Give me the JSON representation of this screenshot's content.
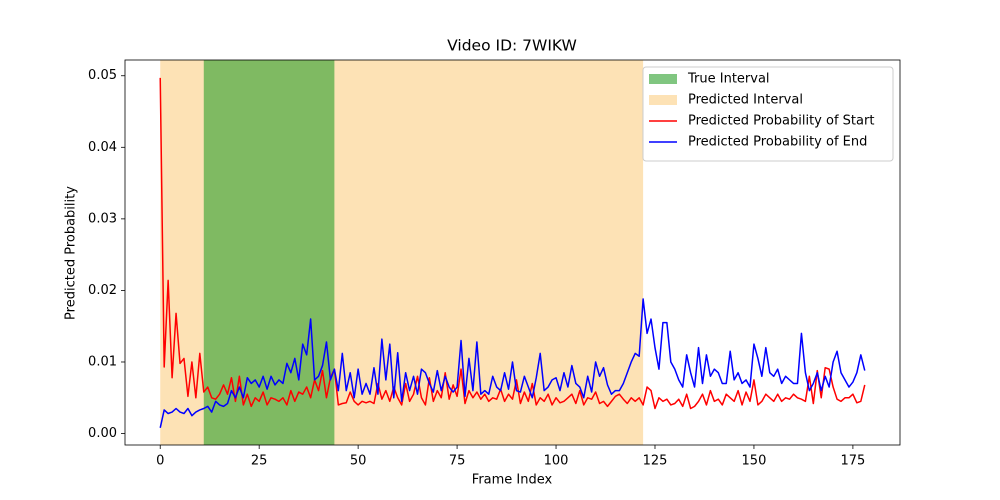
{
  "chart_data": {
    "type": "line",
    "title": "Video ID: 7WIKW",
    "x_label": "Frame Index",
    "y_label": "Predicted Probability",
    "x": [
      0,
      1,
      2,
      3,
      4,
      5,
      6,
      7,
      8,
      9,
      10,
      11,
      12,
      13,
      14,
      15,
      16,
      17,
      18,
      19,
      20,
      21,
      22,
      23,
      24,
      25,
      26,
      27,
      28,
      29,
      30,
      31,
      32,
      33,
      34,
      35,
      36,
      37,
      38,
      39,
      40,
      41,
      42,
      43,
      44,
      45,
      46,
      47,
      48,
      49,
      50,
      51,
      52,
      53,
      54,
      55,
      56,
      57,
      58,
      59,
      60,
      61,
      62,
      63,
      64,
      65,
      66,
      67,
      68,
      69,
      70,
      71,
      72,
      73,
      74,
      75,
      76,
      77,
      78,
      79,
      80,
      81,
      82,
      83,
      84,
      85,
      86,
      87,
      88,
      89,
      90,
      91,
      92,
      93,
      94,
      95,
      96,
      97,
      98,
      99,
      100,
      101,
      102,
      103,
      104,
      105,
      106,
      107,
      108,
      109,
      110,
      111,
      112,
      113,
      114,
      115,
      116,
      117,
      118,
      119,
      120,
      121,
      122,
      123,
      124,
      125,
      126,
      127,
      128,
      129,
      130,
      131,
      132,
      133,
      134,
      135,
      136,
      137,
      138,
      139,
      140,
      141,
      142,
      143,
      144,
      145,
      146,
      147,
      148,
      149,
      150,
      151,
      152,
      153,
      154,
      155,
      156,
      157,
      158,
      159,
      160,
      161,
      162,
      163,
      164,
      165,
      166,
      167,
      168,
      169,
      170,
      171,
      172,
      173,
      174,
      175,
      176,
      177,
      178
    ],
    "spans": [
      {
        "name": "Predicted Interval",
        "start": 0,
        "end": 122,
        "color": "#fcc66b",
        "opacity": 0.5
      },
      {
        "name": "True Interval",
        "start": 11,
        "end": 44,
        "color": "#2ca02c",
        "opacity": 0.6
      }
    ],
    "series": [
      {
        "name": "Predicted Probability of Start",
        "color": "#ff0000",
        "values": [
          0.0497,
          0.0093,
          0.0214,
          0.0078,
          0.0168,
          0.0098,
          0.0105,
          0.0052,
          0.01,
          0.005,
          0.0112,
          0.0058,
          0.0065,
          0.005,
          0.0048,
          0.0055,
          0.0068,
          0.0055,
          0.0078,
          0.0045,
          0.008,
          0.004,
          0.0055,
          0.0038,
          0.005,
          0.0045,
          0.0058,
          0.004,
          0.005,
          0.0048,
          0.0045,
          0.005,
          0.004,
          0.006,
          0.0045,
          0.0058,
          0.0055,
          0.0065,
          0.005,
          0.0075,
          0.006,
          0.0088,
          0.005,
          0.0078,
          0.009,
          0.004,
          0.0042,
          0.0043,
          0.0058,
          0.0045,
          0.004,
          0.0045,
          0.0043,
          0.0045,
          0.0042,
          0.007,
          0.0048,
          0.006,
          0.0045,
          0.0065,
          0.005,
          0.004,
          0.007,
          0.0045,
          0.0055,
          0.008,
          0.005,
          0.004,
          0.0078,
          0.0045,
          0.006,
          0.005,
          0.0085,
          0.0048,
          0.0068,
          0.0052,
          0.009,
          0.0042,
          0.006,
          0.005,
          0.0058,
          0.0048,
          0.0055,
          0.0045,
          0.005,
          0.0048,
          0.0062,
          0.0045,
          0.0055,
          0.0048,
          0.0075,
          0.0042,
          0.0058,
          0.0045,
          0.007,
          0.004,
          0.005,
          0.0045,
          0.0055,
          0.004,
          0.005,
          0.0043,
          0.0045,
          0.005,
          0.0055,
          0.0042,
          0.006,
          0.004,
          0.005,
          0.0048,
          0.0058,
          0.0042,
          0.0045,
          0.0038,
          0.0045,
          0.0052,
          0.0055,
          0.0048,
          0.0042,
          0.005,
          0.0045,
          0.005,
          0.004,
          0.0065,
          0.006,
          0.0035,
          0.005,
          0.0045,
          0.0048,
          0.004,
          0.0042,
          0.0048,
          0.0038,
          0.0055,
          0.0035,
          0.0038,
          0.0045,
          0.0055,
          0.004,
          0.006,
          0.0045,
          0.0048,
          0.004,
          0.0055,
          0.005,
          0.0045,
          0.006,
          0.004,
          0.0058,
          0.0045,
          0.0075,
          0.004,
          0.0045,
          0.0055,
          0.005,
          0.0045,
          0.0055,
          0.0045,
          0.005,
          0.0048,
          0.0055,
          0.005,
          0.0048,
          0.0045,
          0.008,
          0.0042,
          0.0088,
          0.005,
          0.0092,
          0.009,
          0.0065,
          0.0048,
          0.0045,
          0.005,
          0.005,
          0.0055,
          0.0043,
          0.0045,
          0.0068
        ]
      },
      {
        "name": "Predicted Probability of End",
        "color": "#0000ff",
        "values": [
          0.0008,
          0.0033,
          0.0028,
          0.003,
          0.0035,
          0.003,
          0.0028,
          0.0035,
          0.0025,
          0.003,
          0.0033,
          0.0035,
          0.0038,
          0.003,
          0.0045,
          0.004,
          0.0038,
          0.0042,
          0.006,
          0.005,
          0.0065,
          0.005,
          0.0078,
          0.007,
          0.0075,
          0.0065,
          0.008,
          0.0062,
          0.008,
          0.0068,
          0.0075,
          0.007,
          0.0098,
          0.0085,
          0.0105,
          0.0075,
          0.0125,
          0.011,
          0.016,
          0.0075,
          0.008,
          0.0095,
          0.0128,
          0.0075,
          0.009,
          0.006,
          0.0112,
          0.006,
          0.0085,
          0.005,
          0.009,
          0.0055,
          0.007,
          0.0055,
          0.0092,
          0.0055,
          0.0132,
          0.0075,
          0.0125,
          0.005,
          0.0113,
          0.0045,
          0.0085,
          0.006,
          0.008,
          0.0055,
          0.009,
          0.0085,
          0.007,
          0.0058,
          0.0088,
          0.006,
          0.008,
          0.0065,
          0.0058,
          0.0065,
          0.013,
          0.0052,
          0.0105,
          0.006,
          0.0128,
          0.0055,
          0.006,
          0.0055,
          0.008,
          0.0065,
          0.006,
          0.0085,
          0.0062,
          0.01,
          0.006,
          0.0058,
          0.008,
          0.0065,
          0.005,
          0.0078,
          0.0112,
          0.006,
          0.0065,
          0.0075,
          0.0078,
          0.006,
          0.0085,
          0.0065,
          0.0095,
          0.007,
          0.0065,
          0.005,
          0.008,
          0.0058,
          0.01,
          0.008,
          0.0092,
          0.0068,
          0.0055,
          0.006,
          0.006,
          0.007,
          0.0085,
          0.01,
          0.0112,
          0.0108,
          0.0188,
          0.014,
          0.016,
          0.012,
          0.009,
          0.0155,
          0.0155,
          0.01,
          0.009,
          0.0075,
          0.0065,
          0.011,
          0.0085,
          0.0065,
          0.012,
          0.007,
          0.011,
          0.008,
          0.009,
          0.0085,
          0.007,
          0.007,
          0.0115,
          0.0075,
          0.0085,
          0.007,
          0.0075,
          0.0065,
          0.0125,
          0.0105,
          0.008,
          0.012,
          0.0085,
          0.008,
          0.009,
          0.007,
          0.008,
          0.0075,
          0.007,
          0.007,
          0.014,
          0.0085,
          0.006,
          0.007,
          0.0085,
          0.006,
          0.008,
          0.0065,
          0.01,
          0.0115,
          0.0085,
          0.0075,
          0.0065,
          0.0072,
          0.0085,
          0.011,
          0.0088
        ]
      }
    ],
    "xlim": [
      -8.9,
      186.9
    ],
    "ylim": [
      -0.0016,
      0.0522
    ],
    "xticks": [
      0,
      25,
      50,
      75,
      100,
      125,
      150,
      175
    ],
    "yticks": [
      {
        "value": 0,
        "label": "0.00"
      },
      {
        "value": 0.01,
        "label": "0.01"
      },
      {
        "value": 0.02,
        "label": "0.02"
      },
      {
        "value": 0.03,
        "label": "0.03"
      },
      {
        "value": 0.04,
        "label": "0.04"
      },
      {
        "value": 0.05,
        "label": "0.05"
      }
    ],
    "legend": "upper right"
  }
}
